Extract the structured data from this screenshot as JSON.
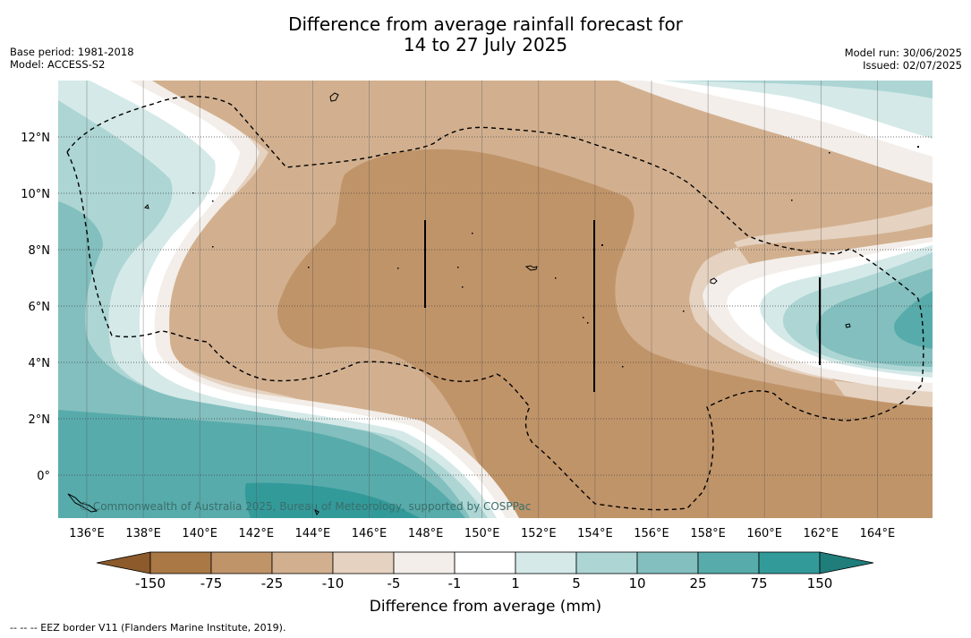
{
  "header": {
    "title_line1": "Difference from average rainfall forecast for",
    "title_line2": "14 to 27 July 2025",
    "base_period": "Base period: 1981-2018",
    "model": "Model: ACCESS-S2",
    "model_run": "Model run: 30/06/2025",
    "issued": "Issued: 02/07/2025"
  },
  "map": {
    "longitude_labels": [
      "136°E",
      "138°E",
      "140°E",
      "142°E",
      "144°E",
      "146°E",
      "148°E",
      "150°E",
      "152°E",
      "154°E",
      "156°E",
      "158°E",
      "160°E",
      "162°E",
      "164°E"
    ],
    "latitude_labels": [
      "12°N",
      "10°N",
      "8°N",
      "6°N",
      "4°N",
      "2°N",
      "0°"
    ],
    "copyright": "© Commonwealth of Australia 2025, Bureau of Meteorology, supported by COSPPac",
    "colors": {
      "dry_150": "#a97845",
      "dry_75": "#c09469",
      "dry_25": "#d2b08f",
      "dry_10": "#e5d2c0",
      "dry_5": "#f3eee9",
      "neutral": "#ffffff",
      "wet_5": "#d4e9e8",
      "wet_10": "#acd5d4",
      "wet_25": "#82bfbe",
      "wet_75": "#58abab",
      "wet_150": "#339a9a"
    }
  },
  "colorbar": {
    "tick_labels": [
      "-150",
      "-75",
      "-25",
      "-10",
      "-5",
      "-1",
      "1",
      "5",
      "10",
      "25",
      "75",
      "150"
    ],
    "label": "Difference from average (mm)"
  },
  "footnote": "--  --  -- EEZ border V11 (Flanders Marine Institute, 2019)."
}
